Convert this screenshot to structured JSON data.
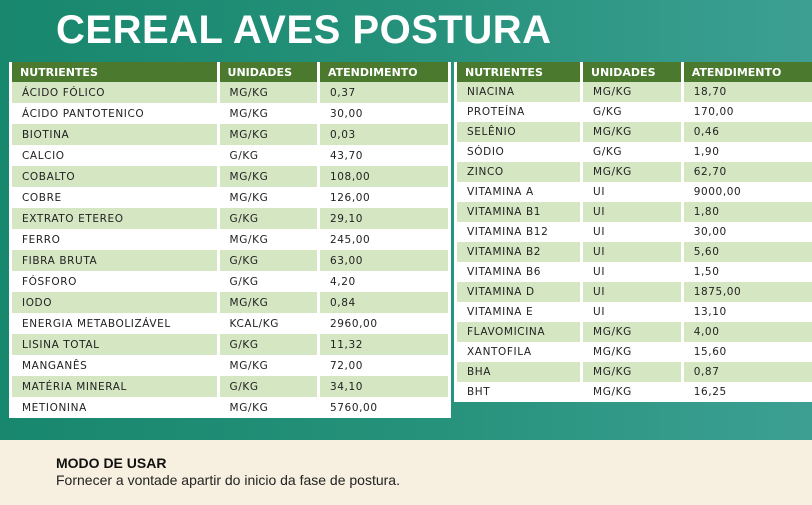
{
  "header": {
    "title": "CEREAL AVES POSTURA"
  },
  "tables": [
    {
      "headers": [
        "NUTRIENTES",
        "UNIDADES",
        "ATENDIMENTO"
      ],
      "rows": [
        [
          "ÁCIDO FÓLICO",
          "MG/KG",
          "0,37"
        ],
        [
          "ÁCIDO PANTOTENICO",
          "MG/KG",
          "30,00"
        ],
        [
          "BIOTINA",
          "MG/KG",
          "0,03"
        ],
        [
          "CALCIO",
          "G/KG",
          "43,70"
        ],
        [
          "COBALTO",
          "MG/KG",
          "108,00"
        ],
        [
          "COBRE",
          "MG/KG",
          "126,00"
        ],
        [
          "EXTRATO ETEREO",
          "G/KG",
          "29,10"
        ],
        [
          "FERRO",
          "MG/KG",
          "245,00"
        ],
        [
          "FIBRA BRUTA",
          "G/KG",
          "63,00"
        ],
        [
          "FÓSFORO",
          "G/KG",
          "4,20"
        ],
        [
          "IODO",
          "MG/KG",
          "0,84"
        ],
        [
          "ENERGIA METABOLIZÁVEL",
          "KCAL/KG",
          "2960,00"
        ],
        [
          "LISINA TOTAL",
          "G/KG",
          "11,32"
        ],
        [
          "MANGANÊS",
          "MG/KG",
          "72,00"
        ],
        [
          "MATÉRIA MINERAL",
          "G/KG",
          "34,10"
        ],
        [
          "METIONINA",
          "MG/KG",
          "5760,00"
        ]
      ]
    },
    {
      "headers": [
        "NUTRIENTES",
        "UNIDADES",
        "ATENDIMENTO"
      ],
      "rows": [
        [
          "NIACINA",
          "MG/KG",
          "18,70"
        ],
        [
          "PROTEÍNA",
          "G/KG",
          "170,00"
        ],
        [
          "SELÊNIO",
          "MG/KG",
          "0,46"
        ],
        [
          "SÓDIO",
          "G/KG",
          "1,90"
        ],
        [
          "ZINCO",
          "MG/KG",
          "62,70"
        ],
        [
          "VITAMINA A",
          "UI",
          "9000,00"
        ],
        [
          "VITAMINA B1",
          "UI",
          "1,80"
        ],
        [
          "VITAMINA B12",
          "UI",
          "30,00"
        ],
        [
          "VITAMINA B2",
          "UI",
          "5,60"
        ],
        [
          "VITAMINA B6",
          "UI",
          "1,50"
        ],
        [
          "VITAMINA D",
          "UI",
          "1875,00"
        ],
        [
          "VITAMINA E",
          "UI",
          "13,10"
        ],
        [
          "FLAVOMICINA",
          "MG/KG",
          "4,00"
        ],
        [
          "XANTOFILA",
          "MG/KG",
          "15,60"
        ],
        [
          "BHA",
          "MG/KG",
          "0,87"
        ],
        [
          "BHT",
          "MG/KG",
          "16,25"
        ]
      ]
    }
  ],
  "usage": {
    "title": "MODO DE USAR",
    "text": "Fornecer a vontade apartir do inicio da fase de postura."
  }
}
